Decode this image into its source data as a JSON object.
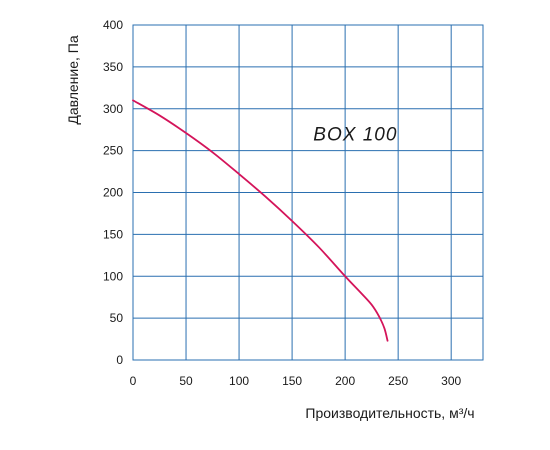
{
  "chart_data": {
    "type": "line",
    "xlabel": "Производительность, м³/ч",
    "ylabel": "Давление, Па",
    "xlim": [
      0,
      330
    ],
    "ylim": [
      0,
      400
    ],
    "x_ticks": [
      0,
      50,
      100,
      150,
      200,
      250,
      300
    ],
    "y_ticks": [
      0,
      50,
      100,
      150,
      200,
      250,
      300,
      350,
      400
    ],
    "grid": true,
    "annotations": [
      {
        "text": "BOX 100",
        "x": 170,
        "y": 262
      }
    ],
    "series": [
      {
        "color": "#d4145a",
        "points": [
          [
            0,
            310
          ],
          [
            25,
            292
          ],
          [
            50,
            271
          ],
          [
            75,
            248
          ],
          [
            100,
            222
          ],
          [
            125,
            195
          ],
          [
            150,
            166
          ],
          [
            175,
            135
          ],
          [
            200,
            100
          ],
          [
            215,
            80
          ],
          [
            225,
            66
          ],
          [
            232,
            52
          ],
          [
            237,
            38
          ],
          [
            240,
            23
          ]
        ]
      }
    ]
  }
}
